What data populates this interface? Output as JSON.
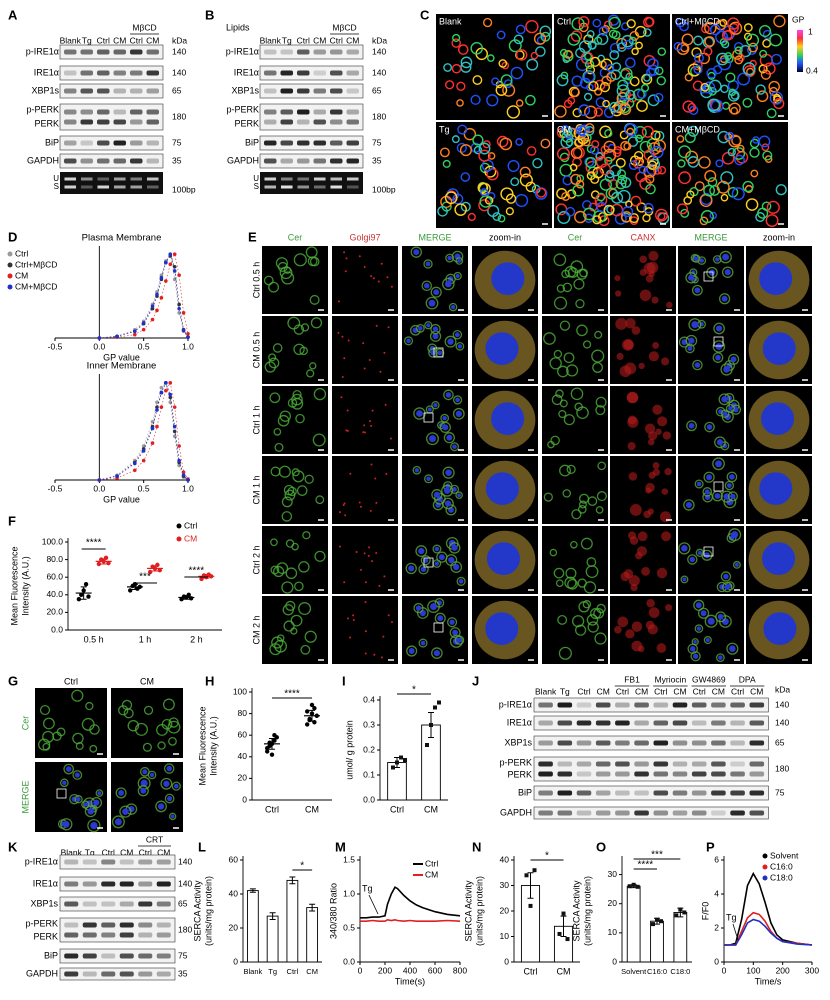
{
  "panels": {
    "A": {
      "letter": "A",
      "columns": [
        "Blank",
        "Tg",
        "Ctrl",
        "CM",
        "Ctrl",
        "CM"
      ],
      "groups": [
        "MβCD"
      ],
      "unit": "kDa",
      "rows": [
        "p-IRE1α",
        "IRE1α",
        "XBP1s",
        "p-PERK",
        "PERK",
        "BiP",
        "GAPDH"
      ],
      "sizes": [
        "140",
        "140",
        "65",
        "180",
        "75",
        "35"
      ],
      "gel": [
        "U",
        "S"
      ],
      "ladder": "100bp"
    },
    "B": {
      "letter": "B",
      "subtitle": "Lipids",
      "columns": [
        "Blank",
        "Tg",
        "Ctrl",
        "CM",
        "Ctrl",
        "CM"
      ],
      "groups": [
        "MβCD"
      ],
      "unit": "kDa",
      "rows": [
        "p-IRE1α",
        "IRE1α",
        "XBP1s",
        "p-PERK",
        "PERK",
        "BiP",
        "GAPDH"
      ],
      "sizes": [
        "140",
        "140",
        "65",
        "180",
        "75",
        "35"
      ],
      "gel": [
        "U",
        "S"
      ],
      "ladder": "100bp"
    },
    "C": {
      "letter": "C",
      "labels": [
        "Blank",
        "Ctrl",
        "Ctrl+MβCD",
        "Tg",
        "CM",
        "CM+MβCD"
      ],
      "colorbar": "GP",
      "colorbar_ticks": [
        "1",
        "0.4"
      ]
    },
    "E": {
      "letter": "E",
      "columns": [
        "Cer",
        "Golgi97",
        "MERGE",
        "zoom-in",
        "Cer",
        "CANX",
        "MERGE",
        "zoom-in"
      ],
      "rows": [
        "Ctrl 0.5 h",
        "CM 0.5 h",
        "Ctrl 1 h",
        "CM 1 h",
        "Ctrl 2 h",
        "CM 2 h"
      ]
    },
    "G": {
      "letter": "G",
      "columns": [
        "Ctrl",
        "CM"
      ],
      "rows": [
        "Cer",
        "MERGE"
      ]
    },
    "J": {
      "letter": "J",
      "columns": [
        "Blank",
        "Tg",
        "Ctrl",
        "CM",
        "Ctrl",
        "CM",
        "Ctrl",
        "CM",
        "Ctrl",
        "CM",
        "Ctrl",
        "CM"
      ],
      "groups": [
        "FB1",
        "Myriocin",
        "GW4869",
        "DPA"
      ],
      "unit": "kDa",
      "rows": [
        "p-IRE1α",
        "IRE1α",
        "XBP1s",
        "p-PERK",
        "PERK",
        "BiP",
        "GAPDH"
      ],
      "sizes": [
        "140",
        "140",
        "65",
        "180",
        "75"
      ]
    },
    "K": {
      "letter": "K",
      "columns": [
        "Blank",
        "Tg",
        "Ctrl",
        "CM",
        "Ctrl",
        "CM"
      ],
      "groups": [
        "CRT"
      ],
      "rows": [
        "p-IRE1α",
        "IRE1α",
        "XBP1s",
        "p-PERK",
        "PERK",
        "BiP",
        "GAPDH"
      ],
      "sizes": [
        "140",
        "140",
        "65",
        "180",
        "75",
        "35"
      ]
    }
  },
  "chart_data": [
    {
      "type": "line",
      "letter": "D",
      "title": "Plasma Membrane",
      "xlabel": "GP value",
      "markers": true,
      "legend": "upper left",
      "x": [
        0.0,
        0.2,
        0.4,
        0.5,
        0.6,
        0.65,
        0.7,
        0.75,
        0.8,
        0.85,
        0.9,
        0.95,
        1.0
      ],
      "series": [
        {
          "name": "Ctrl",
          "color": "#9a9a9a",
          "values": [
            0,
            0.02,
            0.1,
            0.2,
            0.4,
            0.55,
            0.75,
            0.92,
            1.0,
            0.7,
            0.3,
            0.08,
            0.01
          ]
        },
        {
          "name": "Ctrl+MβCD",
          "color": "#333333",
          "values": [
            0,
            0.02,
            0.08,
            0.17,
            0.35,
            0.5,
            0.7,
            0.9,
            0.98,
            0.85,
            0.4,
            0.1,
            0.01
          ]
        },
        {
          "name": "CM",
          "color": "#e02020",
          "values": [
            0,
            0.01,
            0.04,
            0.1,
            0.22,
            0.33,
            0.48,
            0.68,
            0.88,
            1.0,
            0.75,
            0.3,
            0.05
          ]
        },
        {
          "name": "CM+MβCD",
          "color": "#2030d0",
          "values": [
            0,
            0.02,
            0.08,
            0.18,
            0.38,
            0.52,
            0.72,
            0.9,
            1.0,
            0.8,
            0.35,
            0.09,
            0.01
          ]
        }
      ],
      "xlim": [
        -0.5,
        1.0
      ],
      "xticks": [
        -0.5,
        {
          "value": 0,
          "label": "0.0"
        },
        0.5,
        {
          "value": 1,
          "label": "1.0"
        }
      ],
      "ylim": [
        0,
        1.05
      ]
    },
    {
      "type": "line",
      "title": "Inner Membrane",
      "xlabel": "GP value",
      "markers": true,
      "x": [
        0.0,
        0.2,
        0.4,
        0.5,
        0.6,
        0.65,
        0.7,
        0.75,
        0.8,
        0.85,
        0.9,
        0.95,
        1.0
      ],
      "series": [
        {
          "color": "#9a9a9a",
          "values": [
            0,
            0.05,
            0.2,
            0.35,
            0.6,
            0.8,
            0.95,
            1.0,
            0.8,
            0.45,
            0.15,
            0.03,
            0
          ]
        },
        {
          "color": "#333333",
          "values": [
            0,
            0.04,
            0.18,
            0.32,
            0.55,
            0.75,
            0.9,
            1.0,
            0.85,
            0.5,
            0.18,
            0.04,
            0
          ]
        },
        {
          "color": "#e02020",
          "values": [
            0,
            0.02,
            0.1,
            0.2,
            0.38,
            0.55,
            0.75,
            0.92,
            1.0,
            0.75,
            0.35,
            0.08,
            0.01
          ]
        },
        {
          "color": "#2030d0",
          "values": [
            0,
            0.04,
            0.17,
            0.3,
            0.53,
            0.72,
            0.9,
            1.0,
            0.88,
            0.55,
            0.2,
            0.05,
            0
          ]
        }
      ],
      "xlim": [
        -0.5,
        1.0
      ],
      "xticks": [
        -0.5,
        {
          "value": 0,
          "label": "0.0"
        },
        0.5,
        {
          "value": 1,
          "label": "1.0"
        }
      ],
      "ylim": [
        0,
        1.05
      ]
    },
    {
      "type": "dot",
      "letter": "F",
      "ylabel": [
        "Mean Fluorescence",
        "Intensity (A.U.)"
      ],
      "categories": [
        "0.5 h",
        "1 h",
        "2 h"
      ],
      "series": [
        {
          "name": "Ctrl",
          "color": "#000000",
          "values": [
            [
              35,
              40,
              45,
              52,
              38
            ],
            [
              45,
              50,
              52,
              47,
              49
            ],
            [
              35,
              38,
              37,
              40,
              36
            ]
          ],
          "means": [
            42,
            49,
            37
          ],
          "errors": [
            7,
            3,
            2
          ]
        },
        {
          "name": "CM",
          "color": "#e02020",
          "values": [
            [
              75,
              80,
              78,
              82,
              76
            ],
            [
              66,
              72,
              70,
              74,
              68
            ],
            [
              58,
              62,
              60,
              63,
              61
            ]
          ],
          "means": [
            78,
            70,
            61
          ],
          "errors": [
            3,
            3,
            2
          ]
        }
      ],
      "ylim": [
        0,
        100
      ],
      "yticks": [
        {
          "value": 0,
          "label": "0.0"
        },
        {
          "value": 20,
          "label": "20.0"
        },
        {
          "value": 40,
          "label": "40.0"
        },
        {
          "value": 60,
          "label": "60.0"
        },
        {
          "value": 80,
          "label": "80.0"
        },
        {
          "value": 100,
          "label": "100.0"
        }
      ],
      "legend": "upper right",
      "annotations": [
        "****",
        "***",
        "****"
      ]
    },
    {
      "type": "dot",
      "letter": "H",
      "ylabel": [
        "Mean Fluorescence",
        "Intensity (A.U.)"
      ],
      "categories": [
        "Ctrl",
        "CM"
      ],
      "series": [
        {
          "color": "#000000",
          "values": [
            [
              45,
              50,
              52,
              55,
              58,
              48,
              53,
              42,
              60
            ],
            [
              70,
              75,
              80,
              85,
              78,
              82,
              74,
              88,
              72
            ]
          ],
          "means": [
            52,
            78
          ],
          "errors": [
            5,
            5
          ]
        }
      ],
      "ylim": [
        0,
        100
      ],
      "yticks": [
        0,
        20,
        40,
        60,
        80,
        100
      ],
      "annotations": [
        "****"
      ]
    },
    {
      "type": "bar",
      "letter": "I",
      "ylabel": "umol/ g protein",
      "categories": [
        "Ctrl",
        "CM"
      ],
      "values": [
        0.15,
        0.3
      ],
      "errors": [
        0.02,
        0.05
      ],
      "points": [
        [
          0.13,
          0.15,
          0.17,
          0.16
        ],
        [
          0.22,
          0.3,
          0.37,
          0.39
        ]
      ],
      "color": "#ffffff",
      "ylim": [
        0,
        0.4
      ],
      "yticks": [
        {
          "value": 0,
          "label": "0.0"
        },
        0.1,
        0.2,
        0.3,
        0.4
      ],
      "annotations": [
        "*"
      ]
    },
    {
      "type": "bar",
      "letter": "L",
      "ylabel": [
        "SERCA Activity",
        "(units/mg protein)"
      ],
      "categories": [
        "Blank",
        "Tg",
        "Ctrl",
        "CM"
      ],
      "values": [
        42,
        27,
        48,
        32
      ],
      "errors": [
        1,
        2,
        2,
        2
      ],
      "color": "#ffffff",
      "ylim": [
        0,
        60
      ],
      "yticks": [
        0,
        20,
        40,
        60
      ],
      "annotations": [
        "*"
      ]
    },
    {
      "type": "line",
      "letter": "M",
      "ylabel": "340/380 Ratio",
      "xlabel": "Time(s)",
      "legend": "upper right",
      "x": [
        0,
        50,
        100,
        150,
        200,
        220,
        250,
        280,
        300,
        350,
        400,
        450,
        500,
        600,
        700,
        800
      ],
      "series": [
        {
          "name": "Ctrl",
          "color": "#000000",
          "values": [
            0.65,
            0.65,
            0.66,
            0.66,
            0.68,
            0.85,
            1.0,
            1.1,
            1.08,
            0.98,
            0.9,
            0.84,
            0.8,
            0.74,
            0.7,
            0.68
          ]
        },
        {
          "name": "CM",
          "color": "#e02020",
          "values": [
            0.6,
            0.6,
            0.61,
            0.6,
            0.6,
            0.62,
            0.61,
            0.62,
            0.61,
            0.6,
            0.61,
            0.6,
            0.6,
            0.6,
            0.61,
            0.6
          ]
        }
      ],
      "xlim": [
        0,
        800
      ],
      "xticks": [
        0,
        200,
        400,
        600,
        800
      ],
      "ylim": [
        0,
        1.5
      ],
      "yticks": [
        {
          "value": 0,
          "label": "0.0"
        },
        0.5,
        {
          "value": 1,
          "label": "1.0"
        },
        1.5
      ],
      "annotations": [
        "Tg"
      ]
    },
    {
      "type": "bar",
      "letter": "N",
      "ylabel": [
        "SERCA Activity",
        "(units/mg protein)"
      ],
      "categories": [
        "Ctrl",
        "CM"
      ],
      "values": [
        30,
        14
      ],
      "errors": [
        5,
        4
      ],
      "points": [
        [
          34,
          22,
          36
        ],
        [
          11,
          19,
          9
        ]
      ],
      "color": "#ffffff",
      "ylim": [
        0,
        40
      ],
      "yticks": [
        0,
        10,
        20,
        30,
        40
      ],
      "annotations": [
        "*"
      ]
    },
    {
      "type": "bar",
      "letter": "O",
      "ylabel": [
        "SERCA Activity",
        "(units/mg protein)"
      ],
      "categories": [
        "Solvent",
        "C16:0",
        "C18:0"
      ],
      "values": [
        26,
        14,
        17
      ],
      "errors": [
        0.5,
        1,
        1.5
      ],
      "points": [
        [
          26,
          26.5,
          25.8
        ],
        [
          13,
          14.5,
          14
        ],
        [
          16,
          18,
          17
        ]
      ],
      "color": "#ffffff",
      "ylim": [
        0,
        35
      ],
      "yticks": [
        0,
        10,
        20,
        30
      ],
      "annotations": [
        "***",
        "****"
      ]
    },
    {
      "type": "line",
      "letter": "P",
      "ylabel": "F/F0",
      "xlabel": "Time/s",
      "legend": "upper right",
      "legend_markers": true,
      "x": [
        0,
        20,
        40,
        60,
        80,
        100,
        120,
        140,
        160,
        180,
        200,
        250,
        300
      ],
      "series": [
        {
          "name": "Solvent",
          "color": "#000000",
          "values": [
            1,
            1,
            1.1,
            2.5,
            4.5,
            5.2,
            4.6,
            3.5,
            2.3,
            1.6,
            1.3,
            1.1,
            1
          ]
        },
        {
          "name": "C16:0",
          "color": "#e02020",
          "values": [
            1,
            1,
            1,
            1.8,
            2.6,
            2.9,
            2.8,
            2.4,
            1.8,
            1.4,
            1.2,
            1.1,
            1
          ]
        },
        {
          "name": "C18:0",
          "color": "#2030c0",
          "values": [
            1,
            1,
            1,
            1.6,
            2.3,
            2.5,
            2.4,
            2.1,
            1.7,
            1.4,
            1.2,
            1.05,
            1
          ]
        }
      ],
      "xlim": [
        0,
        300
      ],
      "xticks": [
        0,
        100,
        200,
        300
      ],
      "ylim": [
        0,
        6
      ],
      "yticks": [
        0,
        2,
        4,
        6
      ],
      "annotations": [
        "Tg"
      ]
    }
  ]
}
